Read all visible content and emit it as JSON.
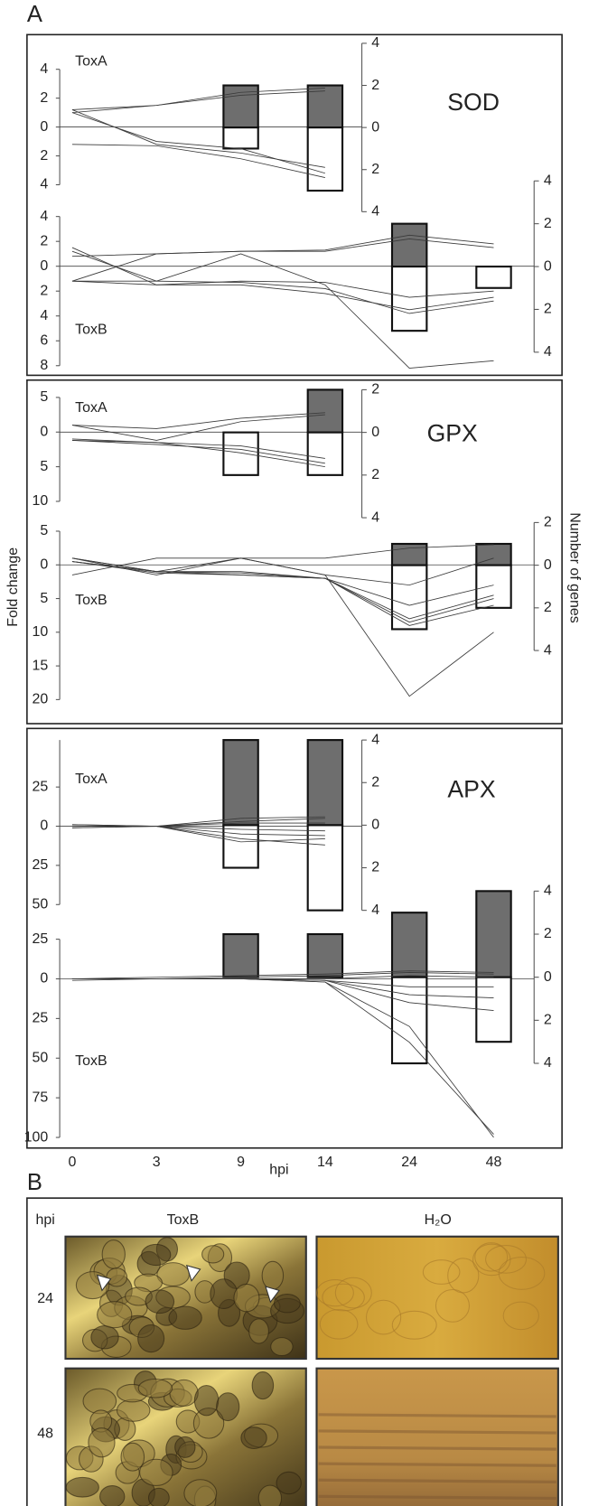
{
  "panel_a": {
    "label": "A",
    "y_label": "Fold change",
    "y2_label": "Number of genes",
    "x_label": "hpi",
    "categories": [
      "0",
      "3",
      "9",
      "14",
      "24",
      "48"
    ],
    "line_color": "#3a3a3a",
    "up_color": "#6e6e6e",
    "down_color": "#ffffff",
    "panels": [
      {
        "enzyme": "SOD",
        "charts": [
          {
            "toxin": "ToxA",
            "ylim": [
              -4,
              4
            ],
            "yticks": [
              4,
              2,
              0,
              {
                "value": -2,
                "label": "2"
              },
              {
                "value": -4,
                "label": "4"
              }
            ],
            "y2lim": [
              -4,
              4
            ],
            "y2ticks": [
              4,
              2,
              0,
              {
                "value": -2,
                "label": "2"
              },
              {
                "value": -4,
                "label": "4"
              }
            ],
            "lines": [
              [
                1.2,
                1.5,
                2.4,
                2.7,
                null,
                null
              ],
              [
                1.0,
                1.5,
                2.2,
                2.5,
                null,
                null
              ],
              [
                1.2,
                -1.2,
                -1.8,
                -2.8,
                null,
                null
              ],
              [
                -1.2,
                -1.3,
                -2.2,
                -3.5,
                null,
                null
              ],
              [
                1.0,
                -1.0,
                -1.5,
                -3.2,
                null,
                null
              ]
            ],
            "up": [
              null,
              null,
              2,
              2,
              null,
              null
            ],
            "down": [
              null,
              null,
              -1,
              -3,
              null,
              null
            ]
          },
          {
            "toxin": "ToxB",
            "ylim": [
              -8,
              4
            ],
            "yticks": [
              4,
              2,
              0,
              {
                "value": -2,
                "label": "2"
              },
              {
                "value": -4,
                "label": "4"
              },
              {
                "value": -6,
                "label": "6"
              },
              {
                "value": -8,
                "label": "8"
              }
            ],
            "y2lim": [
              -4,
              4
            ],
            "y2ticks": [
              4,
              2,
              0,
              {
                "value": -2,
                "label": "2"
              },
              {
                "value": -4,
                "label": "4"
              }
            ],
            "lines": [
              [
                1.2,
                -1.2,
                1.0,
                -1.5,
                -8.2,
                -7.6
              ],
              [
                0.8,
                1.0,
                1.2,
                1.2,
                2.2,
                1.5
              ],
              [
                -1.2,
                1.0,
                1.2,
                1.3,
                2.5,
                1.8
              ],
              [
                -1.2,
                -1.5,
                -1.2,
                -1.3,
                -2.5,
                -2.0
              ],
              [
                1.5,
                -1.5,
                -1.5,
                -2.2,
                -3.5,
                -2.5
              ],
              [
                -1.2,
                -1.2,
                -1.3,
                -1.8,
                -3.8,
                -2.8
              ]
            ],
            "up": [
              null,
              null,
              null,
              null,
              2,
              null
            ],
            "down": [
              null,
              null,
              null,
              null,
              -3,
              -1
            ]
          }
        ]
      },
      {
        "enzyme": "GPX",
        "charts": [
          {
            "toxin": "ToxA",
            "ylim": [
              -10,
              5
            ],
            "yticks": [
              5,
              0,
              {
                "value": -5,
                "label": "5"
              },
              {
                "value": -10,
                "label": "10"
              }
            ],
            "y2lim": [
              -4,
              2
            ],
            "y2ticks": [
              2,
              0,
              {
                "value": -2,
                "label": "2"
              },
              {
                "value": -4,
                "label": "4"
              }
            ],
            "lines": [
              [
                1.0,
                0.5,
                2.0,
                2.8,
                null,
                null
              ],
              [
                1.0,
                -1.2,
                1.5,
                2.5,
                null,
                null
              ],
              [
                -1.2,
                -1.5,
                -2.0,
                -3.8,
                null,
                null
              ],
              [
                -1.2,
                -1.8,
                -2.5,
                -4.5,
                null,
                null
              ],
              [
                -1.0,
                -1.5,
                -3.0,
                -5.0,
                null,
                null
              ]
            ],
            "up": [
              null,
              null,
              null,
              2,
              null,
              null
            ],
            "down": [
              null,
              null,
              -2,
              -2,
              null,
              null
            ]
          },
          {
            "toxin": "ToxB",
            "ylim": [
              -20,
              5
            ],
            "yticks": [
              5,
              0,
              {
                "value": -5,
                "label": "5"
              },
              {
                "value": -10,
                "label": "10"
              },
              {
                "value": -15,
                "label": "15"
              },
              {
                "value": -20,
                "label": "20"
              }
            ],
            "y2lim": [
              -4,
              2
            ],
            "y2ticks": [
              2,
              0,
              {
                "value": -2,
                "label": "2"
              },
              {
                "value": -4,
                "label": "4"
              }
            ],
            "lines": [
              [
                1.0,
                -1.0,
                1.0,
                -1.5,
                -19.5,
                -10
              ],
              [
                -1.5,
                1.0,
                1.0,
                1.0,
                2.5,
                3.0
              ],
              [
                1.0,
                -1.5,
                1.0,
                -1.5,
                -3.0,
                1.0
              ],
              [
                0.5,
                -1.0,
                -1.0,
                -2.0,
                -6.0,
                -3.0
              ],
              [
                0.5,
                -1.0,
                -1.5,
                -2.0,
                -8.0,
                -4.5
              ],
              [
                0.5,
                -1.2,
                -1.5,
                -2.0,
                -8.5,
                -5.0
              ],
              [
                1.0,
                -1.0,
                -1.2,
                -2.0,
                -9.0,
                -6.0
              ]
            ],
            "up": [
              null,
              null,
              null,
              null,
              1,
              1
            ],
            "down": [
              null,
              null,
              null,
              null,
              -3,
              -2
            ]
          }
        ]
      },
      {
        "enzyme": "APX",
        "charts": [
          {
            "toxin": "ToxA",
            "ylim": [
              -50,
              55
            ],
            "yticks": [
              25,
              0,
              {
                "value": -25,
                "label": "25"
              },
              {
                "value": -50,
                "label": "50"
              }
            ],
            "y2lim": [
              -4,
              4
            ],
            "y2ticks": [
              4,
              2,
              0,
              {
                "value": -2,
                "label": "2"
              },
              {
                "value": -4,
                "label": "4"
              }
            ],
            "lines": [
              [
                1,
                0,
                3,
                5,
                null,
                null
              ],
              [
                0,
                0,
                5,
                6,
                null,
                null
              ],
              [
                -1,
                0,
                2,
                2,
                null,
                null
              ],
              [
                1,
                0,
                -2,
                -3,
                null,
                null
              ],
              [
                0,
                0,
                -5,
                -6,
                null,
                null
              ],
              [
                0,
                0,
                -8,
                -12,
                null,
                null
              ],
              [
                -1,
                0,
                -10,
                -8,
                null,
                null
              ]
            ],
            "up": [
              null,
              null,
              4,
              4,
              null,
              null
            ],
            "down": [
              null,
              null,
              -2,
              -4,
              null,
              null
            ]
          },
          {
            "toxin": "ToxB",
            "ylim": [
              -100,
              25
            ],
            "yticks": [
              25,
              0,
              {
                "value": -25,
                "label": "25"
              },
              {
                "value": -50,
                "label": "50"
              },
              {
                "value": -75,
                "label": "75"
              },
              {
                "value": -100,
                "label": "100"
              }
            ],
            "y2lim": [
              -4,
              4
            ],
            "y2ticks": [
              4,
              2,
              0,
              {
                "value": -2,
                "label": "2"
              },
              {
                "value": -4,
                "label": "4"
              }
            ],
            "lines": [
              [
                0,
                1,
                2,
                3,
                5,
                4
              ],
              [
                -1,
                0,
                1,
                2,
                4,
                3
              ],
              [
                0,
                0,
                0,
                0,
                2,
                1
              ],
              [
                0,
                0,
                0,
                -1,
                -5,
                -5
              ],
              [
                0,
                0,
                0,
                -1,
                -10,
                -12
              ],
              [
                0,
                0,
                0,
                -1,
                -15,
                -20
              ],
              [
                0,
                0,
                0,
                -2,
                -30,
                -100
              ],
              [
                0,
                0,
                0,
                -2,
                -40,
                -98
              ]
            ],
            "up": [
              null,
              null,
              2,
              2,
              3,
              4
            ],
            "down": [
              null,
              null,
              null,
              null,
              -4,
              -3
            ]
          }
        ]
      }
    ]
  },
  "panel_b": {
    "label": "B",
    "row_header": "hpi",
    "columns": [
      "ToxB",
      "H₂O"
    ],
    "rows": [
      "24",
      "48"
    ]
  }
}
